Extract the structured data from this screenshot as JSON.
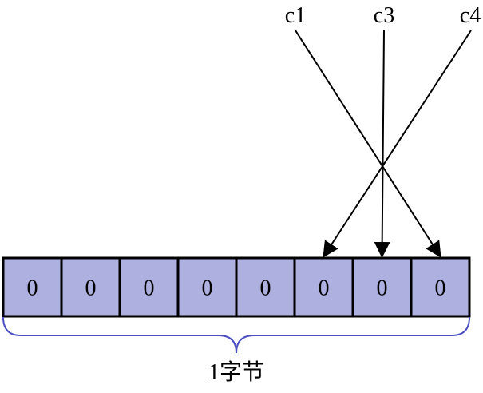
{
  "diagram": {
    "colors": {
      "cell_fill": "#aeb0e0",
      "cell_stroke": "#000000",
      "brace_stroke": "#4b4fc2",
      "arrow_stroke": "#000000"
    },
    "pointers": [
      {
        "label": "c1",
        "target_index": 7
      },
      {
        "label": "c3",
        "target_index": 6
      },
      {
        "label": "c4",
        "target_index": 5
      }
    ],
    "cells": [
      "0",
      "0",
      "0",
      "0",
      "0",
      "0",
      "0",
      "0"
    ],
    "brace_label": "1字节"
  }
}
